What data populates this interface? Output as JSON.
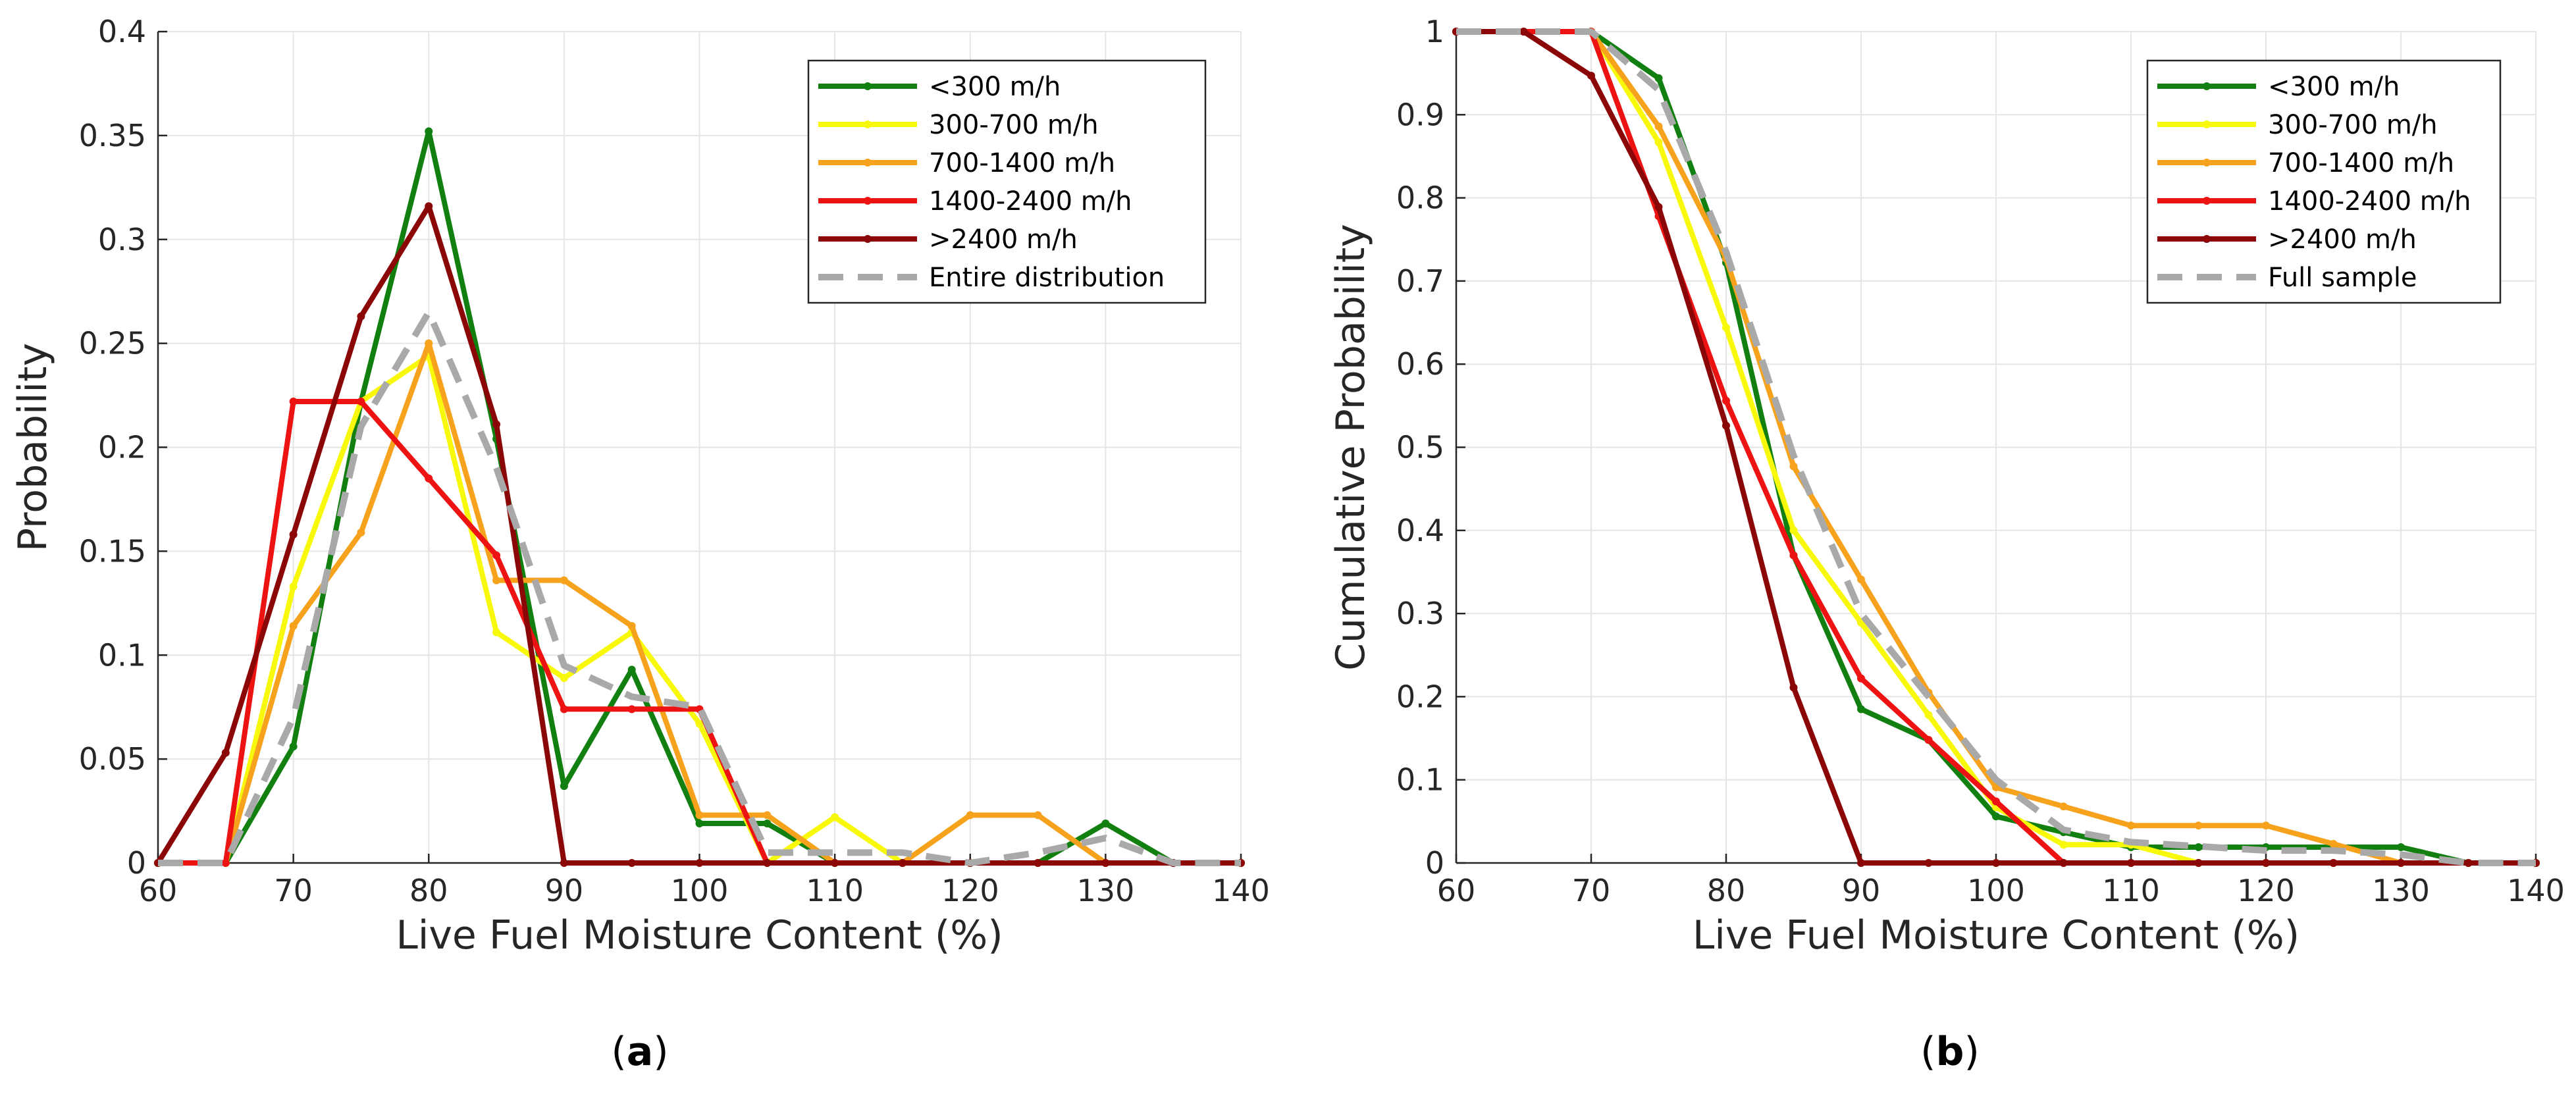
{
  "figure": {
    "panel_a_label": "a",
    "panel_b_label": "b"
  },
  "colors": {
    "lt300": "#118011",
    "300_700": "#f8f80a",
    "700_1400": "#f6a21c",
    "1400_2400": "#ee1313",
    "gt2400": "#8b0707",
    "overall": "#a9a9a9",
    "grid": "#e5e5e5",
    "axis": "#262626"
  },
  "chart_data": [
    {
      "type": "line",
      "panel": "a",
      "xlabel": "Live Fuel Moisture Content (%)",
      "ylabel": "Probability",
      "xlim": [
        60,
        140
      ],
      "ylim": [
        0,
        0.4
      ],
      "xticks": [
        "60",
        "70",
        "80",
        "90",
        "100",
        "110",
        "120",
        "130",
        "140"
      ],
      "yticks": [
        "0",
        "0.05",
        "0.1",
        "0.15",
        "0.2",
        "0.25",
        "0.3",
        "0.35",
        "0.4"
      ],
      "grid": true,
      "legend_position": "top-right",
      "x": [
        60,
        65,
        70,
        75,
        80,
        85,
        90,
        95,
        100,
        105,
        110,
        115,
        120,
        125,
        130,
        135,
        140
      ],
      "series": [
        {
          "name": "<300 m/h",
          "color_key": "lt300",
          "style": "solid",
          "values": [
            0,
            0,
            0.056,
            0.222,
            0.352,
            0.204,
            0.037,
            0.093,
            0.019,
            0.019,
            0,
            0,
            0,
            0,
            0.019,
            0,
            0
          ]
        },
        {
          "name": "300-700 m/h",
          "color_key": "300_700",
          "style": "solid",
          "values": [
            0,
            0,
            0.133,
            0.222,
            0.244,
            0.111,
            0.089,
            0.111,
            0.067,
            0,
            0.022,
            0,
            0,
            0,
            0,
            0,
            0
          ]
        },
        {
          "name": "700-1400 m/h",
          "color_key": "700_1400",
          "style": "solid",
          "values": [
            0,
            0,
            0.114,
            0.159,
            0.25,
            0.136,
            0.136,
            0.114,
            0.023,
            0.023,
            0,
            0,
            0.023,
            0.023,
            0,
            0,
            0
          ]
        },
        {
          "name": "1400-2400 m/h",
          "color_key": "1400_2400",
          "style": "solid",
          "values": [
            0,
            0,
            0.222,
            0.222,
            0.185,
            0.148,
            0.074,
            0.074,
            0.074,
            0,
            0,
            0,
            0,
            0,
            0,
            0,
            0
          ]
        },
        {
          "name": ">2400 m/h",
          "color_key": "gt2400",
          "style": "solid",
          "values": [
            0,
            0.053,
            0.158,
            0.263,
            0.316,
            0.211,
            0,
            0,
            0,
            0,
            0,
            0,
            0,
            0,
            0,
            0,
            0
          ]
        },
        {
          "name": "Entire distribution",
          "color_key": "overall",
          "style": "dashed",
          "values": [
            0,
            0,
            0.07,
            0.21,
            0.265,
            0.19,
            0.095,
            0.08,
            0.075,
            0.005,
            0.005,
            0.005,
            0,
            0.005,
            0.012,
            0,
            0
          ]
        }
      ]
    },
    {
      "type": "line",
      "panel": "b",
      "xlabel": "Live Fuel Moisture Content (%)",
      "ylabel": "Cumulative Probability",
      "xlim": [
        60,
        140
      ],
      "ylim": [
        0,
        1
      ],
      "xticks": [
        "60",
        "70",
        "80",
        "90",
        "100",
        "110",
        "120",
        "130",
        "140"
      ],
      "yticks": [
        "0",
        "0.1",
        "0.2",
        "0.3",
        "0.4",
        "0.5",
        "0.6",
        "0.7",
        "0.8",
        "0.9",
        "1"
      ],
      "grid": true,
      "legend_position": "top-right",
      "x": [
        60,
        65,
        70,
        75,
        80,
        85,
        90,
        95,
        100,
        105,
        110,
        115,
        120,
        125,
        130,
        135,
        140
      ],
      "series": [
        {
          "name": "<300 m/h",
          "color_key": "lt300",
          "style": "solid",
          "values": [
            1,
            1,
            1,
            0.944,
            0.722,
            0.37,
            0.185,
            0.148,
            0.056,
            0.037,
            0.019,
            0.019,
            0.019,
            0.019,
            0.019,
            0,
            0
          ]
        },
        {
          "name": "300-700 m/h",
          "color_key": "300_700",
          "style": "solid",
          "values": [
            1,
            1,
            1,
            0.867,
            0.644,
            0.4,
            0.289,
            0.178,
            0.067,
            0.022,
            0.022,
            0,
            0,
            0,
            0,
            0,
            0
          ]
        },
        {
          "name": "700-1400 m/h",
          "color_key": "700_1400",
          "style": "solid",
          "values": [
            1,
            1,
            1,
            0.886,
            0.727,
            0.477,
            0.341,
            0.205,
            0.091,
            0.068,
            0.045,
            0.045,
            0.045,
            0.023,
            0,
            0,
            0
          ]
        },
        {
          "name": "1400-2400 m/h",
          "color_key": "1400_2400",
          "style": "solid",
          "values": [
            1,
            1,
            1,
            0.778,
            0.556,
            0.37,
            0.222,
            0.148,
            0.074,
            0,
            0,
            0,
            0,
            0,
            0,
            0,
            0
          ]
        },
        {
          "name": ">2400 m/h",
          "color_key": "gt2400",
          "style": "solid",
          "values": [
            1,
            1,
            0.947,
            0.789,
            0.526,
            0.211,
            0,
            0,
            0,
            0,
            0,
            0,
            0,
            0,
            0,
            0,
            0
          ]
        },
        {
          "name": "Full sample",
          "color_key": "overall",
          "style": "dashed",
          "values": [
            1,
            1,
            1,
            0.93,
            0.735,
            0.49,
            0.3,
            0.2,
            0.1,
            0.04,
            0.025,
            0.02,
            0.015,
            0.015,
            0.01,
            0,
            0
          ]
        }
      ]
    }
  ]
}
